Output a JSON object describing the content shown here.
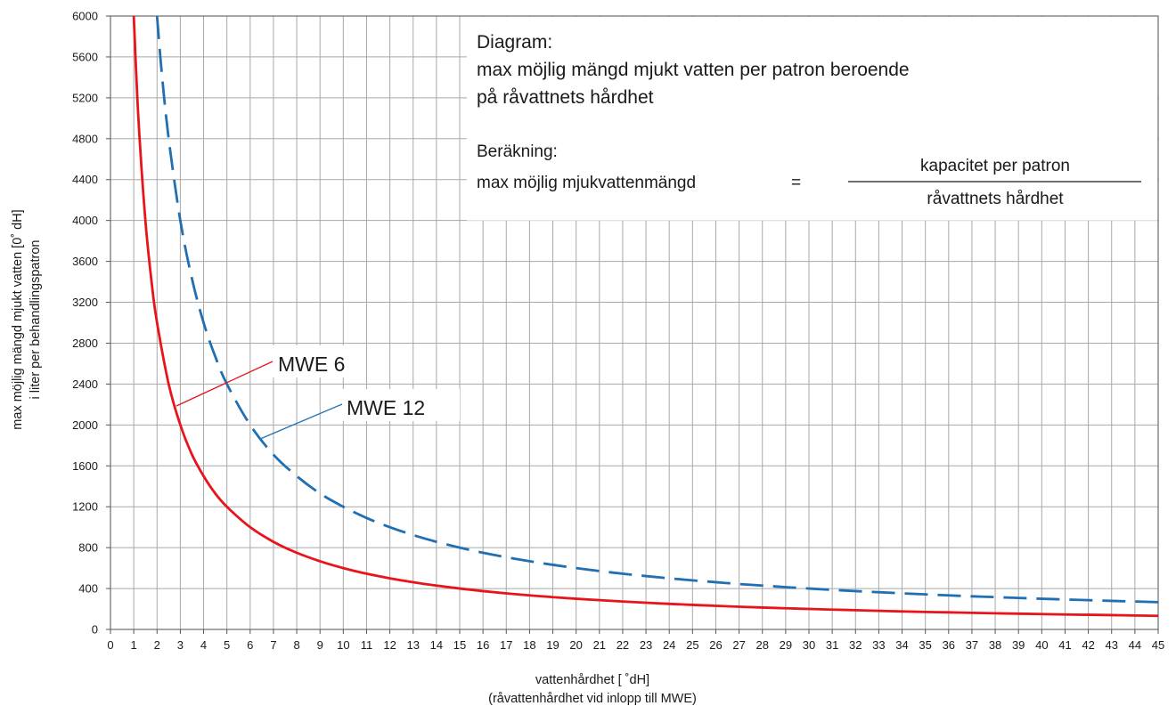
{
  "chart_data": {
    "type": "line",
    "x_ticks": [
      "0",
      "1",
      "2",
      "3",
      "4",
      "5",
      "6",
      "7",
      "8",
      "9",
      "10",
      "11",
      "12",
      "13",
      "14",
      "15",
      "16",
      "17",
      "18",
      "19",
      "20",
      "21",
      "22",
      "23",
      "24",
      "25",
      "26",
      "27",
      "28",
      "29",
      "30",
      "31",
      "32",
      "33",
      "34",
      "35",
      "36",
      "37",
      "38",
      "39",
      "40",
      "41",
      "42",
      "43",
      "44",
      "45"
    ],
    "y_ticks": [
      "0",
      "400",
      "800",
      "1200",
      "1600",
      "2000",
      "2400",
      "2800",
      "3200",
      "3600",
      "4000",
      "4400",
      "4800",
      "5200",
      "5600",
      "6000"
    ],
    "xlim": [
      0,
      45
    ],
    "ylim": [
      0,
      6000
    ],
    "grid": true,
    "xlabel_line1": "vattenhårdhet [ ˚dH]",
    "xlabel_line2": "(råvattenhårdhet vid inlopp till MWE)",
    "ylabel_line1": "max möjlig mängd mjukt vatten [0˚ dH]",
    "ylabel_line2": "i liter per behandlingspatron",
    "series": [
      {
        "name": "MWE 6",
        "color": "#e8141b",
        "dash": "solid",
        "x": [
          1,
          1.2,
          1.5,
          1.8,
          2,
          2.5,
          3,
          3.5,
          4,
          4.5,
          5,
          6,
          7,
          8,
          9,
          10,
          11,
          12,
          13,
          14,
          15,
          16,
          17,
          18,
          19,
          20,
          21,
          22,
          23,
          24,
          25,
          26,
          27,
          28,
          29,
          30,
          31,
          32,
          33,
          34,
          35,
          36,
          37,
          38,
          39,
          40,
          41,
          42,
          43,
          44,
          45
        ],
        "y": [
          6000,
          5000,
          4000,
          3330,
          3000,
          2400,
          2000,
          1710,
          1500,
          1330,
          1200,
          1000,
          857,
          750,
          667,
          600,
          545,
          500,
          462,
          429,
          400,
          375,
          353,
          333,
          316,
          300,
          286,
          273,
          261,
          250,
          240,
          231,
          222,
          214,
          207,
          200,
          194,
          188,
          182,
          176,
          171,
          167,
          162,
          158,
          154,
          150,
          146,
          143,
          140,
          136,
          133
        ]
      },
      {
        "name": "MWE 12",
        "color": "#1f6fb2",
        "dash": "dashed",
        "x": [
          2,
          2.2,
          2.5,
          3,
          3.5,
          4,
          4.5,
          5,
          6,
          7,
          8,
          9,
          10,
          11,
          12,
          13,
          14,
          15,
          16,
          17,
          18,
          19,
          20,
          21,
          22,
          23,
          24,
          25,
          26,
          27,
          28,
          29,
          30,
          31,
          32,
          33,
          34,
          35,
          36,
          37,
          38,
          39,
          40,
          41,
          42,
          43,
          44,
          45
        ],
        "y": [
          6000,
          5450,
          4800,
          4000,
          3430,
          3000,
          2670,
          2400,
          2000,
          1710,
          1500,
          1330,
          1200,
          1090,
          1000,
          923,
          857,
          800,
          750,
          706,
          667,
          632,
          600,
          571,
          545,
          522,
          500,
          480,
          462,
          444,
          429,
          414,
          400,
          387,
          375,
          364,
          353,
          343,
          333,
          324,
          316,
          308,
          300,
          293,
          286,
          279,
          273,
          267
        ]
      }
    ],
    "annotations": [
      {
        "series": "MWE 6",
        "text": "MWE 6"
      },
      {
        "series": "MWE 12",
        "text": "MWE 12"
      }
    ]
  },
  "info_box": {
    "diagram_title": "Diagram:",
    "diagram_line1": "max möjlig mängd mjukt vatten per patron beroende",
    "diagram_line2": "på råvattnets hårdhet",
    "calc_title": "Beräkning:",
    "calc_lhs": "max möjlig mjukvattenmängd",
    "calc_eq": "=",
    "calc_numerator": "kapacitet per patron",
    "calc_denominator": "råvattnets hårdhet"
  }
}
